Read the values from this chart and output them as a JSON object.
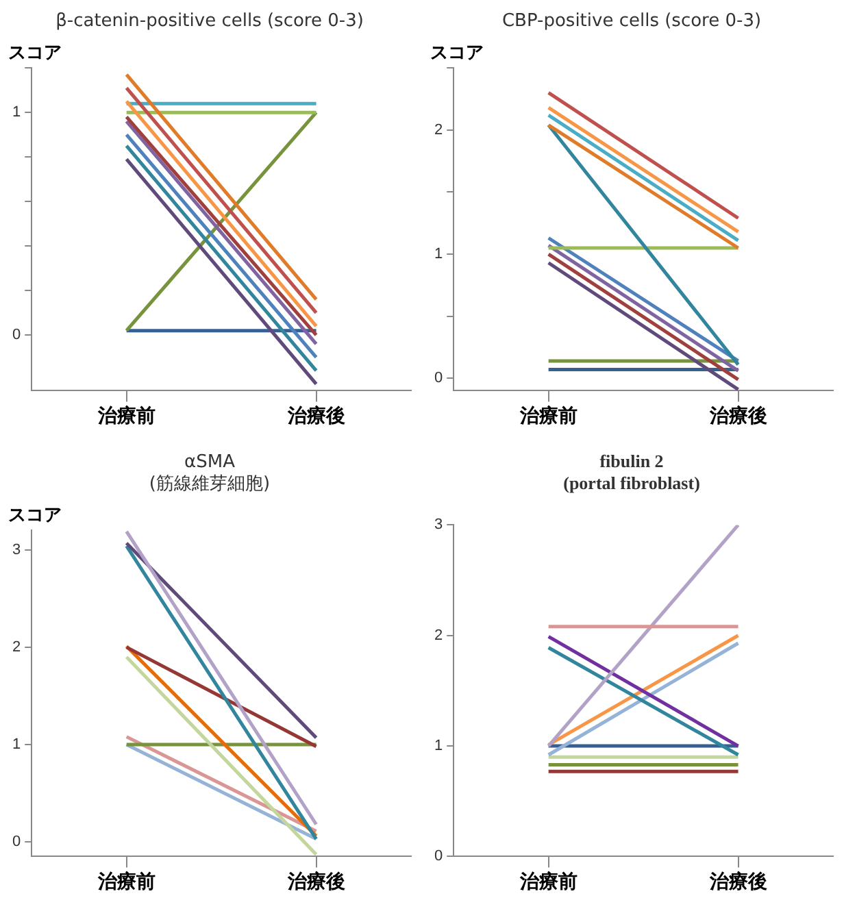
{
  "chart_data": [
    {
      "type": "line",
      "title": "β-catenin-positive cells (score 0-3)",
      "ylabel": "スコア",
      "categories": [
        "治療前",
        "治療後"
      ],
      "ylim": [
        -0.25,
        1.2
      ],
      "yticks": [
        0,
        {
          "value": 0.2,
          "label": null
        },
        {
          "value": 0.4,
          "label": null
        },
        {
          "value": 0.6,
          "label": null
        },
        {
          "value": 0.8,
          "label": null
        },
        1,
        {
          "value": 1.2,
          "label": null
        }
      ],
      "grid": false,
      "legend": false,
      "marker": "none",
      "series": [
        {
          "color": "#e07b2a",
          "values": [
            1.17,
            0.16
          ]
        },
        {
          "color": "#c0504d",
          "values": [
            1.11,
            0.1
          ]
        },
        {
          "color": "#f79646",
          "values": [
            1.05,
            0.04
          ]
        },
        {
          "color": "#a0403d",
          "values": [
            0.98,
            0.0
          ]
        },
        {
          "color": "#8064a2",
          "values": [
            0.96,
            -0.04
          ]
        },
        {
          "color": "#4f81bd",
          "values": [
            0.9,
            -0.1
          ]
        },
        {
          "color": "#31859c",
          "values": [
            0.85,
            -0.16
          ]
        },
        {
          "color": "#604a7b",
          "values": [
            0.79,
            -0.22
          ]
        },
        {
          "color": "#4bacc6",
          "values": [
            1.04,
            1.04
          ]
        },
        {
          "color": "#9bbb59",
          "values": [
            1.0,
            1.0
          ]
        },
        {
          "color": "#77933c",
          "values": [
            0.02,
            1.0
          ]
        },
        {
          "color": "#366092",
          "values": [
            0.02,
            0.02
          ]
        }
      ]
    },
    {
      "type": "line",
      "title": "CBP-positive cells (score 0-3)",
      "ylabel": "スコア",
      "categories": [
        "治療前",
        "治療後"
      ],
      "ylim": [
        -0.1,
        2.5
      ],
      "yticks": [
        0,
        {
          "value": 0.5,
          "label": null
        },
        1,
        {
          "value": 1.5,
          "label": null
        },
        2,
        {
          "value": 2.5,
          "label": null
        }
      ],
      "grid": false,
      "legend": false,
      "marker": "none",
      "series": [
        {
          "color": "#c0504d",
          "values": [
            2.3,
            1.29
          ]
        },
        {
          "color": "#f79646",
          "values": [
            2.18,
            1.18
          ]
        },
        {
          "color": "#4bacc6",
          "values": [
            2.12,
            1.11
          ]
        },
        {
          "color": "#e07b2a",
          "values": [
            2.04,
            1.05
          ]
        },
        {
          "color": "#31859c",
          "values": [
            2.04,
            0.11
          ]
        },
        {
          "color": "#9bbb59",
          "values": [
            1.05,
            1.05
          ]
        },
        {
          "color": "#4f81bd",
          "values": [
            1.13,
            0.14
          ]
        },
        {
          "color": "#8064a2",
          "values": [
            1.07,
            0.06
          ]
        },
        {
          "color": "#a0403d",
          "values": [
            1.0,
            -0.01
          ]
        },
        {
          "color": "#604a7b",
          "values": [
            0.93,
            -0.09
          ]
        },
        {
          "color": "#77933c",
          "values": [
            0.14,
            0.14
          ]
        },
        {
          "color": "#366092",
          "values": [
            0.07,
            0.07
          ]
        }
      ]
    },
    {
      "type": "line",
      "title": "αSMA\n(筋線維芽細胞)",
      "ylabel": "スコア",
      "categories": [
        "治療前",
        "治療後"
      ],
      "ylim": [
        -0.15,
        3.2
      ],
      "yticks": [
        0,
        1,
        2,
        3
      ],
      "grid": false,
      "legend": false,
      "marker": "none",
      "series": [
        {
          "color": "#b3a2c7",
          "values": [
            3.19,
            0.18
          ]
        },
        {
          "color": "#604a7b",
          "values": [
            3.07,
            1.07
          ]
        },
        {
          "color": "#31859c",
          "values": [
            3.04,
            0.03
          ]
        },
        {
          "color": "#953735",
          "values": [
            2.0,
            0.98
          ]
        },
        {
          "color": "#e46c0a",
          "values": [
            2.01,
            0.06
          ]
        },
        {
          "color": "#c3d69b",
          "values": [
            1.9,
            -0.13
          ]
        },
        {
          "color": "#77933c",
          "values": [
            1.0,
            1.0
          ]
        },
        {
          "color": "#d99694",
          "values": [
            1.08,
            0.11
          ]
        },
        {
          "color": "#95b3d7",
          "values": [
            1.0,
            0.03
          ]
        }
      ]
    },
    {
      "type": "line",
      "title": "fibulin 2\n(portal fibroblast)",
      "categories": [
        "治療前",
        "治療後"
      ],
      "ylim": [
        0,
        3
      ],
      "yticks": [
        0,
        1,
        2,
        3
      ],
      "grid": false,
      "legend": false,
      "marker": "none",
      "series": [
        {
          "color": "#d99694",
          "values": [
            2.08,
            2.08
          ]
        },
        {
          "color": "#b3a2c7",
          "values": [
            1.0,
            3.0
          ]
        },
        {
          "color": "#7030a0",
          "values": [
            1.99,
            1.0
          ]
        },
        {
          "color": "#31859c",
          "values": [
            1.89,
            0.92
          ]
        },
        {
          "color": "#f79646",
          "values": [
            1.01,
            2.0
          ]
        },
        {
          "color": "#95b3d7",
          "values": [
            0.92,
            1.93
          ]
        },
        {
          "color": "#366092",
          "values": [
            1.0,
            1.0
          ]
        },
        {
          "color": "#c3d69b",
          "values": [
            0.9,
            0.9
          ]
        },
        {
          "color": "#77933c",
          "values": [
            0.83,
            0.83
          ]
        },
        {
          "color": "#953735",
          "values": [
            0.77,
            0.77
          ]
        }
      ]
    }
  ]
}
